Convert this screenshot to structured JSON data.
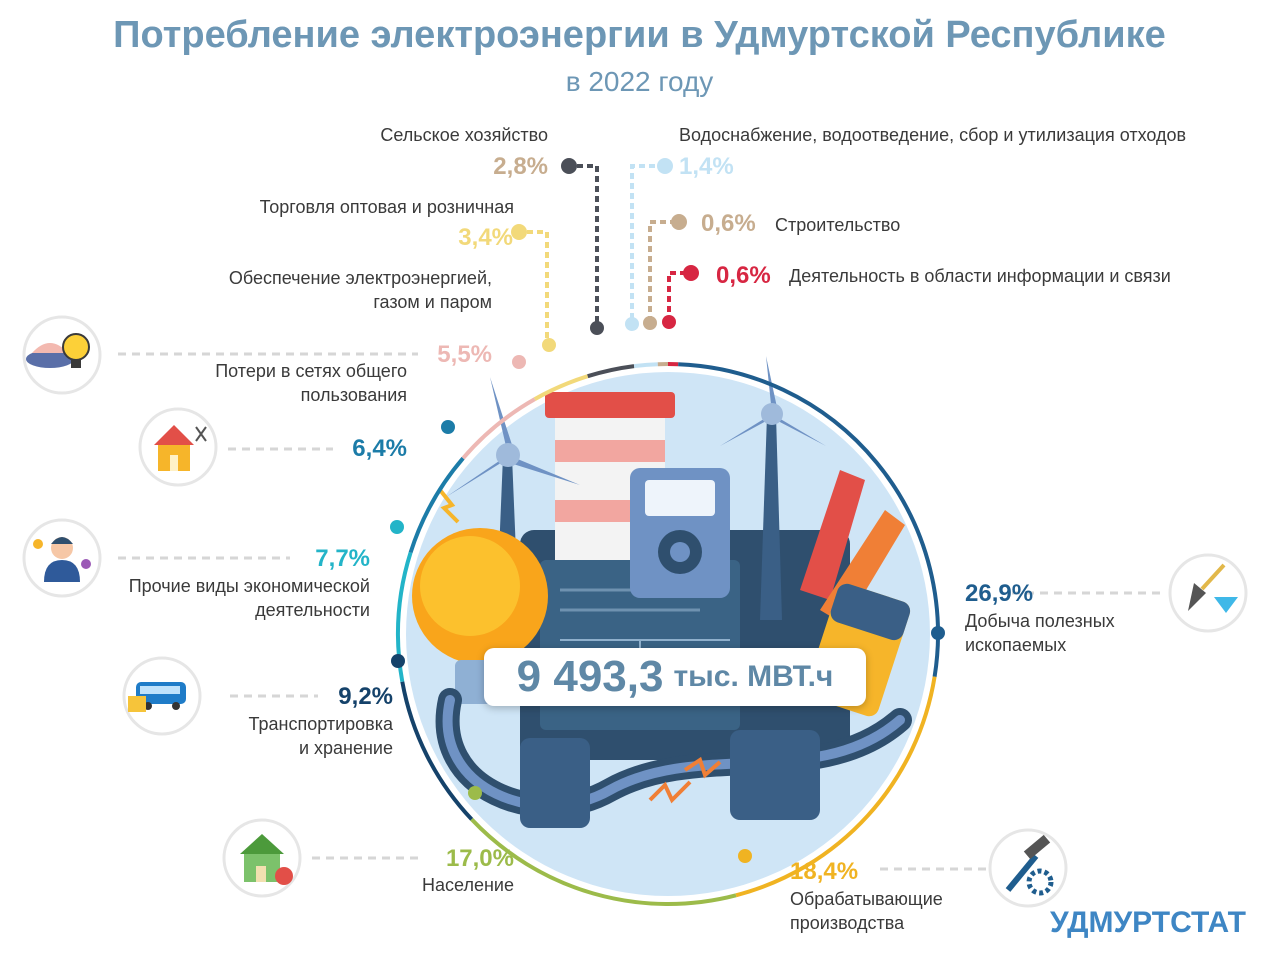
{
  "title": "Потребление электроэнергии в Удмуртской Республике",
  "subtitle": "в 2022 году",
  "total": {
    "value": "9 493,3",
    "unit": "тыс. МВТ.ч"
  },
  "brand": "УДМУРТСТАТ",
  "chart_data": {
    "type": "pie",
    "title": "Потребление электроэнергии в Удмуртской Республике",
    "subtitle": "в 2022 году",
    "total": 9493.3,
    "total_unit": "тыс. МВТ.ч",
    "value_unit": "%",
    "slices": [
      {
        "name": "Деятельность в области информации и связи",
        "value": 0.6,
        "label": "0,6%",
        "color": "#d72642"
      },
      {
        "name": "Добыча полезных ископаемых",
        "value": 26.9,
        "label": "26,9%",
        "color": "#1f5d8e"
      },
      {
        "name": "Обрабатывающие производства",
        "value": 18.4,
        "label": "18,4%",
        "color": "#f0b322"
      },
      {
        "name": "Население",
        "value": 17.0,
        "label": "17,0%",
        "color": "#9cbb4a"
      },
      {
        "name": "Транспортировка и хранение",
        "value": 9.2,
        "label": "9,2%",
        "color": "#15426a"
      },
      {
        "name": "Прочие виды экономической деятельности",
        "value": 7.7,
        "label": "7,7%",
        "color": "#23b4c8"
      },
      {
        "name": "Потери в сетях общего пользования",
        "value": 6.4,
        "label": "6,4%",
        "color": "#1c7ca8"
      },
      {
        "name": "Обеспечение электроэнергией, газом и паром",
        "value": 5.5,
        "label": "5,5%",
        "color": "#edb8b4"
      },
      {
        "name": "Торговля оптовая и розничная",
        "value": 3.4,
        "label": "3,4%",
        "color": "#f2d97a"
      },
      {
        "name": "Сельское хозяйство",
        "value": 2.8,
        "label": "2,8%",
        "color": "#4b4f58"
      },
      {
        "name": "Водоснабжение, водоотведение, сбор и утилизация отходов",
        "value": 1.4,
        "label": "1,4%",
        "color": "#c2e2f4"
      },
      {
        "name": "Строительство",
        "value": 0.6,
        "label": "0,6%",
        "color": "#c7ad8f"
      }
    ]
  },
  "callouts": [
    {
      "pct": "0,6%",
      "pct_color": "#d72642",
      "lines": [
        "Деятельность в области информации  и связи"
      ]
    },
    {
      "pct": "26,9%",
      "pct_color": "#1f5d8e",
      "lines": [
        "Добыча полезных",
        "ископаемых"
      ]
    },
    {
      "pct": "18,4%",
      "pct_color": "#f0b322",
      "lines": [
        "Обрабатывающие",
        "производства"
      ]
    },
    {
      "pct": "17,0%",
      "pct_color": "#9cbb4a",
      "lines": [
        "Население"
      ]
    },
    {
      "pct": "9,2%",
      "pct_color": "#15426a",
      "lines": [
        "Транспортировка",
        "и хранение"
      ]
    },
    {
      "pct": "7,7%",
      "pct_color": "#23b4c8",
      "lines": [
        "Прочие  виды  экономической",
        "деятельности"
      ]
    },
    {
      "pct": "6,4%",
      "pct_color": "#1c7ca8",
      "lines": [
        "Потери в сетях общего",
        "пользования"
      ]
    },
    {
      "pct": "5,5%",
      "pct_color": "#edb8b4",
      "lines": [
        "Обеспечение  электроэнергией,",
        "газом и паром"
      ]
    },
    {
      "pct": "3,4%",
      "pct_color": "#f2d97a",
      "lines": [
        "Торговля оптовая и розничная"
      ]
    },
    {
      "pct": "2,8%",
      "pct_color": "#c7ad8f",
      "lines": [
        "Сельское хозяйство"
      ]
    },
    {
      "pct": "1,4%",
      "pct_color": "#c2e2f4",
      "lines": [
        "Водоснабжение,  водоотведение,  сбор и  утилизация  отходов"
      ]
    },
    {
      "pct": "0,6%",
      "pct_color": "#c7ad8f",
      "lines": [
        "Строительство"
      ]
    }
  ],
  "icons": [
    "power-plant-bulb-icon",
    "house-repair-icon",
    "businessman-icon",
    "bus-icon",
    "house-kettle-icon",
    "shovel-diamond-icon",
    "hammer-gear-icon"
  ]
}
